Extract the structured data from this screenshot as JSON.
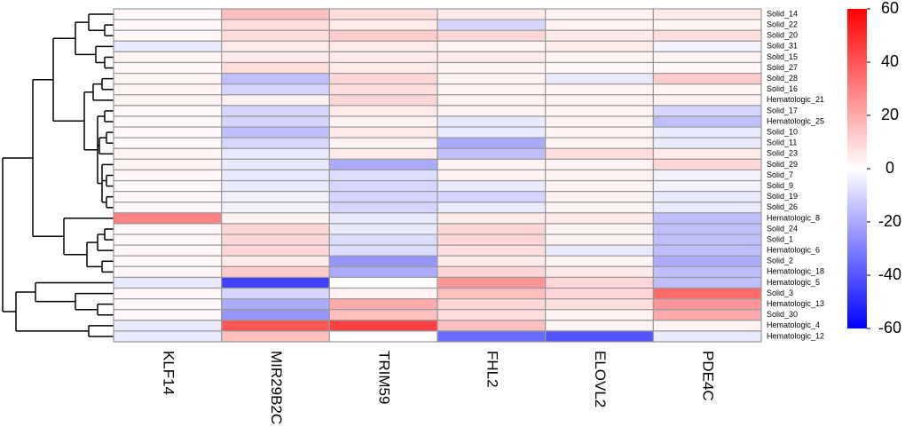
{
  "chart_data": {
    "type": "heatmap",
    "columns": [
      "KLF14",
      "MIR29B2C",
      "TRIM59",
      "FHL2",
      "ELOVL2",
      "PDE4C"
    ],
    "rows": [
      "Solid_14",
      "Solid_22",
      "Solid_20",
      "Solid_31",
      "Solid_15",
      "Solid_27",
      "Solid_28",
      "Solid_16",
      "Hematologic_21",
      "Solid_17",
      "Hematologic_25",
      "Solid_10",
      "Solid_11",
      "Solid_23",
      "Solid_29",
      "Solid_7",
      "Solid_9",
      "Solid_19",
      "Solid_26",
      "Hematologic_8",
      "Solid_24",
      "Solid_1",
      "Hematologic_6",
      "Solid_2",
      "Hematologic_18",
      "Hematologic_5",
      "Solid_3",
      "Hematologic_13",
      "Solid_30",
      "Hematologic_4",
      "Hematologic_12"
    ],
    "values": [
      [
        2,
        15,
        8,
        5,
        3,
        5
      ],
      [
        2,
        8,
        5,
        -10,
        3,
        3
      ],
      [
        2,
        8,
        12,
        10,
        5,
        8
      ],
      [
        -5,
        5,
        5,
        3,
        5,
        -3
      ],
      [
        3,
        5,
        5,
        5,
        3,
        3
      ],
      [
        2,
        8,
        5,
        3,
        2,
        2
      ],
      [
        3,
        -15,
        10,
        3,
        -5,
        12
      ],
      [
        3,
        -10,
        8,
        3,
        3,
        3
      ],
      [
        3,
        3,
        10,
        3,
        3,
        3
      ],
      [
        2,
        -10,
        5,
        3,
        3,
        -10
      ],
      [
        2,
        -10,
        3,
        -5,
        3,
        -15
      ],
      [
        2,
        -15,
        5,
        -5,
        3,
        -5
      ],
      [
        2,
        -10,
        3,
        -20,
        3,
        -5
      ],
      [
        3,
        -5,
        5,
        -15,
        8,
        5
      ],
      [
        3,
        -5,
        -20,
        3,
        3,
        10
      ],
      [
        2,
        -5,
        -8,
        3,
        3,
        -3
      ],
      [
        2,
        -5,
        -10,
        -5,
        3,
        -3
      ],
      [
        2,
        -3,
        -10,
        -10,
        3,
        -5
      ],
      [
        2,
        -3,
        -10,
        -5,
        3,
        -5
      ],
      [
        30,
        3,
        -5,
        5,
        5,
        -15
      ],
      [
        2,
        10,
        -5,
        10,
        3,
        -15
      ],
      [
        2,
        10,
        -8,
        10,
        3,
        -15
      ],
      [
        2,
        10,
        -8,
        8,
        -5,
        -15
      ],
      [
        2,
        5,
        -25,
        5,
        3,
        -20
      ],
      [
        2,
        12,
        -20,
        10,
        5,
        -15
      ],
      [
        -5,
        -45,
        0,
        25,
        10,
        -15
      ],
      [
        2,
        -10,
        3,
        15,
        10,
        35
      ],
      [
        2,
        -20,
        20,
        10,
        8,
        25
      ],
      [
        2,
        -25,
        15,
        8,
        3,
        20
      ],
      [
        -5,
        40,
        45,
        15,
        3,
        3
      ],
      [
        -5,
        15,
        0,
        -35,
        -40,
        -5
      ]
    ],
    "zlim": [
      -60,
      60
    ],
    "zticks": [
      60,
      40,
      20,
      0,
      -20,
      -40,
      -60
    ],
    "colors": [
      "#0000ff",
      "#ffffff",
      "#ff0000"
    ]
  }
}
